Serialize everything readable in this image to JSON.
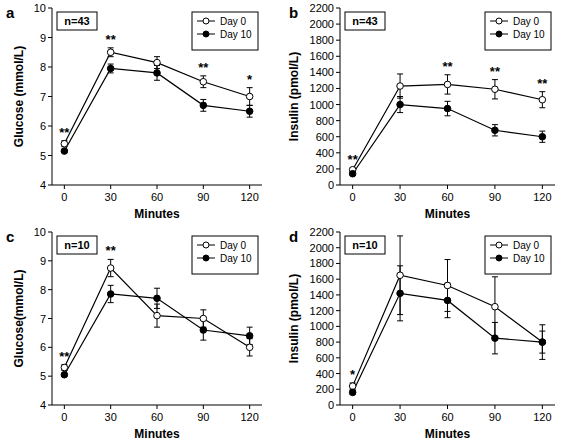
{
  "chart_data": [
    {
      "type": "line",
      "title": "a",
      "subtitle": "n=43",
      "x_label": "Minutes",
      "y_label": "Glucose (mmol/L)",
      "x": [
        0,
        30,
        60,
        90,
        120
      ],
      "xlim": [
        -8,
        128
      ],
      "xticks": [
        0,
        30,
        60,
        90,
        120
      ],
      "ylim": [
        4,
        10
      ],
      "yticks": [
        4,
        5,
        6,
        7,
        8,
        9,
        10
      ],
      "grid": false,
      "legend": "upper right",
      "series": [
        {
          "name": "Day 0",
          "color": "#000000",
          "marker": "open_circle",
          "line_style": "solid",
          "values": [
            5.4,
            8.5,
            8.15,
            7.5,
            7.0
          ],
          "errors": [
            0.1,
            0.15,
            0.2,
            0.2,
            0.3
          ]
        },
        {
          "name": "Day 10",
          "color": "#000000",
          "marker": "filled_circle",
          "line_style": "solid",
          "values": [
            5.15,
            7.95,
            7.8,
            6.7,
            6.5
          ],
          "errors": [
            0.05,
            0.15,
            0.25,
            0.2,
            0.2
          ]
        }
      ],
      "annotations": [
        {
          "x": 0,
          "text": "**"
        },
        {
          "x": 30,
          "text": "**"
        },
        {
          "x": 90,
          "text": "**"
        },
        {
          "x": 120,
          "text": "*"
        }
      ]
    },
    {
      "type": "line",
      "title": "b",
      "subtitle": "n=43",
      "x_label": "Minutes",
      "y_label": "Insulin (pmol/L)",
      "x": [
        0,
        30,
        60,
        90,
        120
      ],
      "xlim": [
        -8,
        128
      ],
      "xticks": [
        0,
        30,
        60,
        90,
        120
      ],
      "ylim": [
        0,
        2200
      ],
      "yticks": [
        0,
        200,
        400,
        600,
        800,
        1000,
        1200,
        1400,
        1600,
        1800,
        2000,
        2200
      ],
      "grid": false,
      "legend": "upper right",
      "series": [
        {
          "name": "Day 0",
          "color": "#000000",
          "marker": "open_circle",
          "line_style": "solid",
          "values": [
            190,
            1230,
            1250,
            1190,
            1060
          ],
          "errors": [
            20,
            150,
            120,
            120,
            100
          ]
        },
        {
          "name": "Day 10",
          "color": "#000000",
          "marker": "filled_circle",
          "line_style": "solid",
          "values": [
            140,
            1000,
            950,
            680,
            600
          ],
          "errors": [
            15,
            100,
            90,
            70,
            70
          ]
        }
      ],
      "annotations": [
        {
          "x": 0,
          "text": "**"
        },
        {
          "x": 60,
          "text": "**"
        },
        {
          "x": 90,
          "text": "**"
        },
        {
          "x": 120,
          "text": "**"
        }
      ]
    },
    {
      "type": "line",
      "title": "c",
      "subtitle": "n=10",
      "x_label": "Minutes",
      "y_label": "Glucose(mmol/L)",
      "x": [
        0,
        30,
        60,
        90,
        120
      ],
      "xlim": [
        -8,
        128
      ],
      "xticks": [
        0,
        30,
        60,
        90,
        120
      ],
      "ylim": [
        4,
        10
      ],
      "yticks": [
        4,
        5,
        6,
        7,
        8,
        9,
        10
      ],
      "grid": false,
      "legend": "upper right",
      "series": [
        {
          "name": "Day 0",
          "color": "#000000",
          "marker": "open_circle",
          "line_style": "solid",
          "values": [
            5.3,
            8.75,
            7.1,
            7.0,
            6.0
          ],
          "errors": [
            0.1,
            0.3,
            0.4,
            0.3,
            0.3
          ]
        },
        {
          "name": "Day 10",
          "color": "#000000",
          "marker": "filled_circle",
          "line_style": "solid",
          "values": [
            5.05,
            7.85,
            7.7,
            6.6,
            6.4
          ],
          "errors": [
            0.05,
            0.3,
            0.35,
            0.35,
            0.3
          ]
        }
      ],
      "annotations": [
        {
          "x": 0,
          "text": "**"
        },
        {
          "x": 30,
          "text": "**"
        }
      ]
    },
    {
      "type": "line",
      "title": "d",
      "subtitle": "n=10",
      "x_label": "Minutes",
      "y_label": "Insulin (pmol/L)",
      "x": [
        0,
        30,
        60,
        90,
        120
      ],
      "xlim": [
        -8,
        128
      ],
      "xticks": [
        0,
        30,
        60,
        90,
        120
      ],
      "ylim": [
        0,
        2200
      ],
      "yticks": [
        0,
        200,
        400,
        600,
        800,
        1000,
        1200,
        1400,
        1600,
        1800,
        2000,
        2200
      ],
      "grid": false,
      "legend": "upper right",
      "series": [
        {
          "name": "Day 0",
          "color": "#000000",
          "marker": "open_circle",
          "line_style": "solid",
          "values": [
            240,
            1650,
            1520,
            1250,
            800
          ],
          "errors": [
            40,
            500,
            330,
            380,
            220
          ]
        },
        {
          "name": "Day 10",
          "color": "#000000",
          "marker": "filled_circle",
          "line_style": "solid",
          "values": [
            160,
            1420,
            1330,
            850,
            800
          ],
          "errors": [
            20,
            350,
            220,
            200,
            140
          ]
        }
      ],
      "annotations": [
        {
          "x": 0,
          "text": "*"
        }
      ]
    }
  ]
}
